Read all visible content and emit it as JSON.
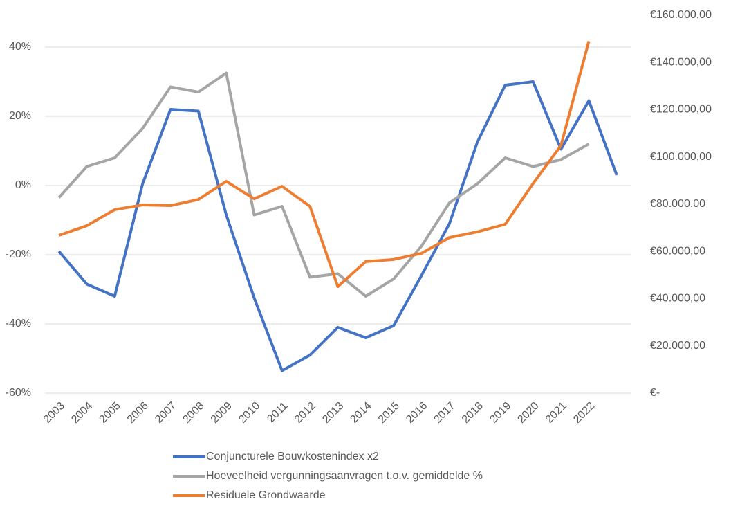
{
  "chart_data": {
    "type": "line",
    "categories": [
      "2003",
      "2004",
      "2005",
      "2006",
      "2007",
      "2008",
      "2009",
      "2010",
      "2011",
      "2012",
      "2013",
      "2014",
      "2015",
      "2016",
      "2017",
      "2018",
      "2019",
      "2020",
      "2021",
      "2022",
      null
    ],
    "ylim": [
      -60,
      50
    ],
    "yticks": [
      {
        "value": -60,
        "label": "-60%"
      },
      {
        "value": -40,
        "label": "-40%"
      },
      {
        "value": -20,
        "label": "-20%"
      },
      {
        "value": 0,
        "label": "0%"
      },
      {
        "value": 20,
        "label": "20%"
      },
      {
        "value": 40,
        "label": "40%"
      }
    ],
    "y2lim": [
      0,
      160000
    ],
    "y2ticks": [
      {
        "value": 0,
        "label": "€-"
      },
      {
        "value": 20000,
        "label": "€20.000,00"
      },
      {
        "value": 40000,
        "label": "€40.000,00"
      },
      {
        "value": 60000,
        "label": "€60.000,00"
      },
      {
        "value": 80000,
        "label": "€80.000,00"
      },
      {
        "value": 100000,
        "label": "€100.000,00"
      },
      {
        "value": 120000,
        "label": "€120.000,00"
      },
      {
        "value": 140000,
        "label": "€140.000,00"
      },
      {
        "value": 160000,
        "label": "€160.000,00"
      }
    ],
    "grid": true,
    "legend": "bottom",
    "series": [
      {
        "name": "Conjuncturele Bouwkostenindex x2",
        "color": "#4472c4",
        "values": [
          -19,
          -28.5,
          -32,
          0.5,
          22,
          21.5,
          -8.5,
          -32.5,
          -53.5,
          -49,
          -41,
          -44,
          -40.5,
          -26,
          -11,
          12.5,
          29,
          30,
          10.5,
          24.5,
          3
        ]
      },
      {
        "name": "Hoeveelheid vergunningsaanvragen t.o.v. gemiddelde %",
        "color": "#a5a5a5",
        "values": [
          -3.5,
          5.5,
          8,
          16.5,
          28.5,
          27,
          32.5,
          -8.5,
          -6,
          -26.5,
          -25.5,
          -32,
          -27,
          -17.5,
          -5,
          0.5,
          8,
          5.5,
          7.5,
          12,
          null
        ]
      },
      {
        "name": "Residuele Grondwaarde",
        "color": "#ed7d31",
        "axis": "y2",
        "values": [
          66800,
          70900,
          77700,
          79700,
          79400,
          82000,
          89700,
          82300,
          87600,
          79100,
          45100,
          55700,
          56600,
          59200,
          65900,
          68300,
          71500,
          88800,
          104900,
          149000,
          null
        ]
      }
    ]
  }
}
